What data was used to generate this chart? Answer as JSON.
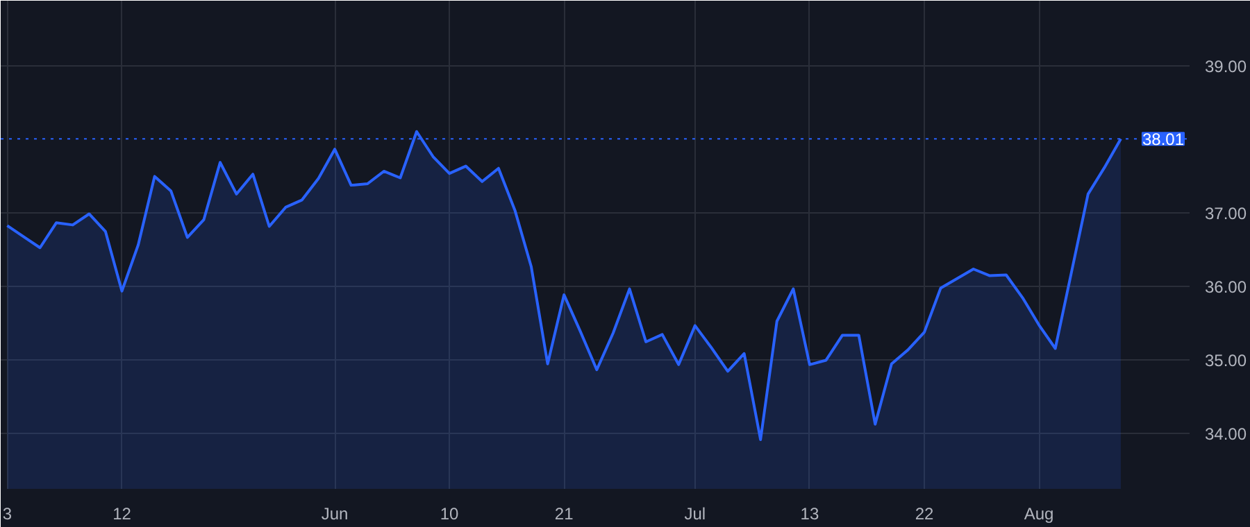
{
  "chart_data": {
    "type": "area",
    "categories": [
      "3",
      null,
      null,
      null,
      null,
      null,
      null,
      "12",
      null,
      null,
      null,
      null,
      null,
      null,
      null,
      null,
      null,
      null,
      null,
      null,
      "Jun",
      null,
      null,
      null,
      null,
      null,
      null,
      "10",
      null,
      null,
      null,
      null,
      null,
      null,
      "21",
      null,
      null,
      null,
      null,
      null,
      null,
      null,
      "Jul",
      null,
      null,
      null,
      null,
      null,
      null,
      "13",
      null,
      null,
      null,
      null,
      null,
      null,
      "22",
      null,
      null,
      null,
      null,
      null,
      null,
      "Aug",
      null,
      null,
      null,
      null,
      null
    ],
    "series": [
      {
        "color": "#2962ff",
        "values": [
          36.83,
          36.68,
          36.53,
          36.87,
          36.84,
          36.99,
          36.75,
          35.94,
          36.57,
          37.5,
          37.3,
          36.67,
          36.91,
          37.69,
          37.26,
          37.53,
          36.82,
          37.08,
          37.18,
          37.47,
          37.87,
          37.38,
          37.4,
          37.57,
          37.48,
          38.11,
          37.77,
          37.54,
          37.64,
          37.43,
          37.61,
          37.04,
          36.27,
          34.95,
          35.89,
          35.39,
          34.87,
          35.37,
          35.97,
          35.25,
          35.35,
          34.94,
          35.47,
          35.17,
          34.85,
          35.09,
          33.92,
          35.53,
          35.97,
          34.94,
          35.0,
          35.34,
          35.34,
          34.13,
          34.95,
          35.14,
          35.38,
          35.98,
          36.11,
          36.24,
          36.15,
          36.16,
          35.85,
          35.48,
          35.16,
          36.21,
          37.26,
          37.62,
          38.01
        ]
      }
    ],
    "ylim": [
      33.25,
      39.89
    ],
    "yticks": [
      {
        "value": 34,
        "label": "34.00"
      },
      {
        "value": 35,
        "label": "35.00"
      },
      {
        "value": 36,
        "label": "36.00"
      },
      {
        "value": 37,
        "label": "37.00"
      },
      {
        "value": 39,
        "label": "39.00"
      }
    ],
    "ref_lines": [
      {
        "axis": "y",
        "value": 38.01,
        "label": "38.01",
        "color": "#2962ff",
        "line_style": "dotted"
      }
    ],
    "grid": true,
    "marker": "none",
    "line_style": "solid"
  }
}
